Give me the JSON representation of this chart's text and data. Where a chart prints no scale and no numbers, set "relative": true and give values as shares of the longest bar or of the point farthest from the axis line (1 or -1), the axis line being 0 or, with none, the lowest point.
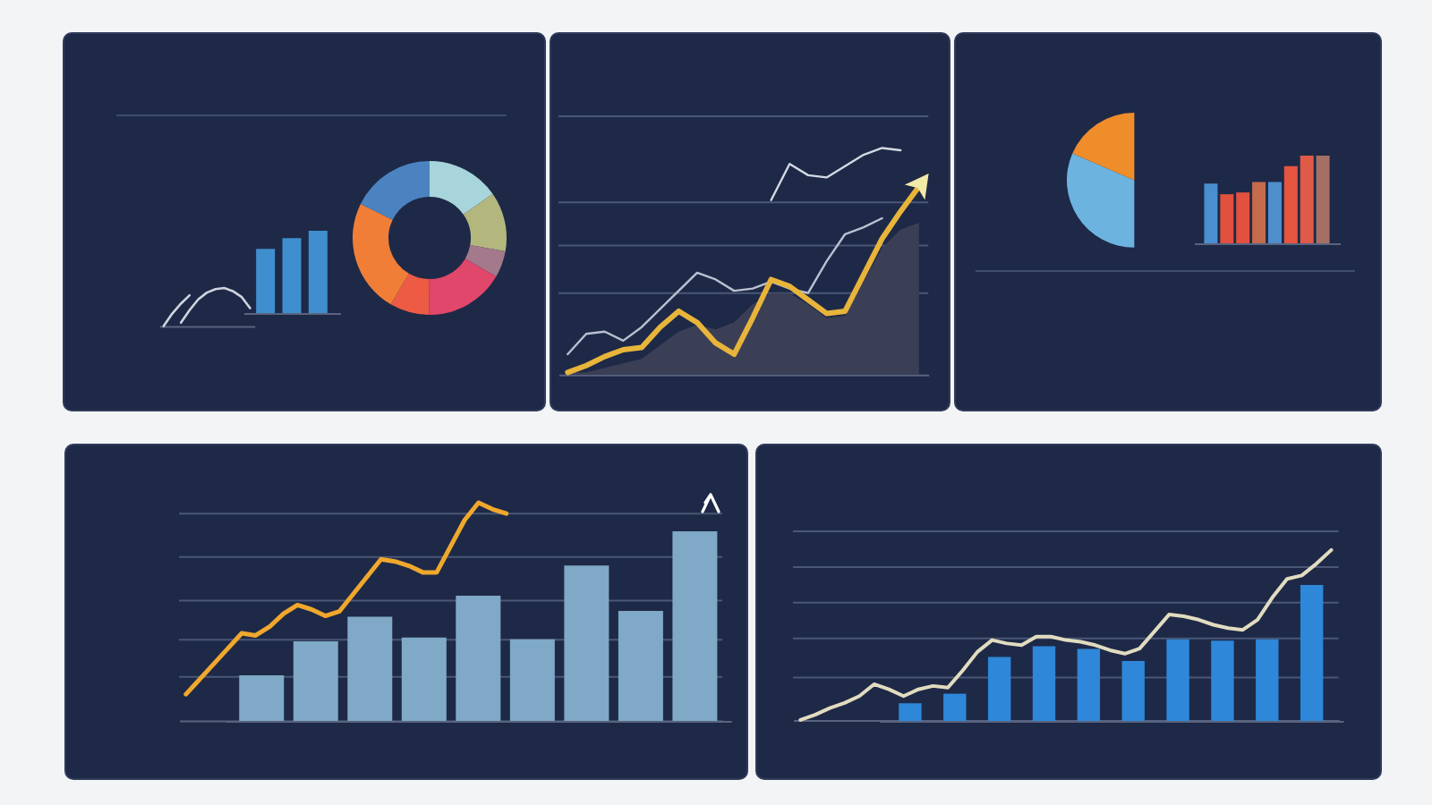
{
  "chart_data": [
    {
      "type": "line",
      "relative": true,
      "categories": [
        null,
        null,
        null,
        null,
        null,
        null,
        null,
        null,
        null,
        null,
        null
      ],
      "series": [
        {
          "color": "#cfd4de",
          "values": [
            0,
            0.33,
            0.59,
            0.81,
            null,
            null,
            null,
            null,
            null,
            null,
            null
          ]
        },
        {
          "color": "#cfd4de",
          "values": [
            null,
            null,
            0.09,
            0.42,
            0.7,
            0.88,
            0.97,
            1,
            0.92,
            0.77,
            0.47
          ]
        }
      ]
    },
    {
      "type": "bar",
      "relative": true,
      "categories": [
        null,
        null,
        null
      ],
      "values": [
        0.78,
        0.91,
        1
      ],
      "color": "#3f8fcf"
    },
    {
      "type": "donut",
      "categories": [
        null,
        null,
        null,
        null,
        null,
        null,
        null
      ],
      "values": [
        15.3,
        12.5,
        5.6,
        16.7,
        8.3,
        23.9,
        17.7
      ],
      "colors": [
        "#a8d5db",
        "#b4b77d",
        "#a3798b",
        "#e1466b",
        "#ed5b45",
        "#f07e37",
        "#4b83c0"
      ]
    },
    {
      "type": "line",
      "relative": true,
      "categories": [
        null,
        null,
        null,
        null,
        null,
        null,
        null,
        null,
        null,
        null,
        null,
        null,
        null,
        null,
        null,
        null,
        null,
        null,
        null,
        null
      ],
      "series": [
        {
          "type": "area",
          "color": "#3b3f55",
          "values": [
            0.01,
            0.01,
            0.03,
            0.05,
            0.07,
            0.13,
            0.19,
            0.22,
            0.2,
            0.23,
            0.31,
            0.36,
            0.36,
            0.31,
            0.25,
            0.26,
            0.41,
            0.56,
            0.64,
            0.67
          ]
        },
        {
          "color": "#b9c1d1",
          "values": [
            0.09,
            0.18,
            0.19,
            0.15,
            0.21,
            0.29,
            0.37,
            0.45,
            0.42,
            0.37,
            0.38,
            0.41,
            0.38,
            0.36,
            0.5,
            0.62,
            0.65,
            0.69,
            null,
            null
          ]
        },
        {
          "color": "#d3d9e4",
          "values": [
            null,
            null,
            null,
            null,
            null,
            null,
            null,
            null,
            null,
            null,
            null,
            0.77,
            0.93,
            0.88,
            0.87,
            0.92,
            0.97,
            1,
            0.99,
            null
          ]
        },
        {
          "color": "#e8b53a",
          "values": [
            0.01,
            0.04,
            0.08,
            0.11,
            0.12,
            0.21,
            0.28,
            0.23,
            0.14,
            0.09,
            0.25,
            0.42,
            0.39,
            0.33,
            0.27,
            0.28,
            0.44,
            0.6,
            0.72,
            0.83
          ]
        }
      ],
      "ref_lines": [
        {
          "axis": "y",
          "value": 0.36,
          "color": "#4a5776"
        },
        {
          "axis": "y",
          "value": 0.57,
          "color": "#4a5776"
        },
        {
          "axis": "y",
          "value": 0.76,
          "color": "#4a5776"
        },
        {
          "axis": "y",
          "value": 1.14,
          "color": "#4a5776"
        }
      ]
    },
    {
      "type": "pie",
      "categories": [
        null,
        null
      ],
      "values": [
        63,
        37
      ],
      "colors": [
        "#6db3e0",
        "#ef8d2b"
      ]
    },
    {
      "type": "bar",
      "relative": true,
      "categories": [
        null,
        null,
        null,
        null,
        null,
        null,
        null,
        null
      ],
      "values": [
        0.68,
        0.56,
        0.58,
        0.7,
        0.7,
        0.88,
        1,
        1
      ],
      "colors": [
        "#4a8fd0",
        "#e2503e",
        "#e2503e",
        "#c66a4c",
        "#4f8fcc",
        "#e6553f",
        "#e05a48",
        "#a56f66"
      ]
    },
    {
      "type": "line",
      "relative": true,
      "categories": [
        null,
        null,
        null,
        null,
        null,
        null,
        null,
        null,
        null,
        null,
        null,
        null,
        null,
        null,
        null,
        null,
        null,
        null,
        null,
        null,
        null,
        null,
        null,
        null,
        null,
        null,
        null,
        null,
        null,
        null,
        null,
        null,
        null,
        null,
        null,
        null,
        null,
        null,
        null
      ],
      "series": [
        {
          "color": "#f0a82c",
          "values": [
            0.12,
            0.19,
            0.26,
            0.33,
            0.4,
            0.39,
            0.43,
            0.49,
            0.53,
            0.51,
            0.48,
            0.5,
            0.58,
            0.66,
            0.74,
            0.73,
            0.71,
            0.68,
            0.68,
            0.8,
            0.92,
            1,
            0.97,
            0.95,
            null,
            null,
            null,
            null,
            null,
            null,
            null,
            null,
            null,
            null,
            null,
            null,
            null,
            null,
            null
          ]
        }
      ],
      "ref_lines": [
        {
          "axis": "y",
          "value": 0.2,
          "color": "#4a5776"
        },
        {
          "axis": "y",
          "value": 0.37,
          "color": "#4a5776"
        },
        {
          "axis": "y",
          "value": 0.55,
          "color": "#4a5776"
        },
        {
          "axis": "y",
          "value": 0.75,
          "color": "#4a5776"
        },
        {
          "axis": "y",
          "value": 0.95,
          "color": "#4a5776"
        }
      ]
    },
    {
      "type": "bar",
      "relative": true,
      "categories": [
        null,
        null,
        null,
        null,
        null,
        null,
        null,
        null,
        null
      ],
      "values": [
        0.24,
        0.42,
        0.55,
        0.44,
        0.66,
        0.43,
        0.82,
        0.58,
        1
      ],
      "color": "#7fa9c6"
    },
    {
      "type": "line",
      "relative": true,
      "categories": [
        null,
        null,
        null,
        null,
        null,
        null,
        null,
        null,
        null,
        null,
        null,
        null,
        null,
        null,
        null,
        null,
        null,
        null,
        null,
        null,
        null,
        null,
        null,
        null,
        null,
        null,
        null,
        null,
        null,
        null,
        null,
        null,
        null,
        null,
        null,
        null,
        null
      ],
      "series": [
        {
          "color": "#e2dcc0",
          "values": [
            0,
            0.03,
            0.07,
            0.1,
            0.14,
            0.21,
            0.18,
            0.14,
            0.18,
            0.2,
            0.19,
            0.29,
            0.4,
            0.47,
            0.45,
            0.44,
            0.49,
            0.49,
            0.47,
            0.46,
            0.44,
            0.41,
            0.39,
            0.42,
            0.52,
            0.62,
            0.61,
            0.59,
            0.56,
            0.54,
            0.53,
            0.59,
            0.72,
            0.83,
            0.85,
            0.92,
            1
          ]
        }
      ],
      "ref_lines": [
        {
          "axis": "y",
          "value": 0.25,
          "color": "#4a5776"
        },
        {
          "axis": "y",
          "value": 0.48,
          "color": "#4a5776"
        },
        {
          "axis": "y",
          "value": 0.69,
          "color": "#4a5776"
        },
        {
          "axis": "y",
          "value": 0.9,
          "color": "#4a5776"
        },
        {
          "axis": "y",
          "value": 1.11,
          "color": "#4a5776"
        }
      ]
    },
    {
      "type": "bar",
      "relative": true,
      "categories": [
        null,
        null,
        null,
        null,
        null,
        null,
        null,
        null,
        null,
        null
      ],
      "values": [
        0.13,
        0.2,
        0.47,
        0.55,
        0.53,
        0.44,
        0.6,
        0.59,
        0.6,
        1
      ],
      "color": "#2e87d9"
    }
  ]
}
